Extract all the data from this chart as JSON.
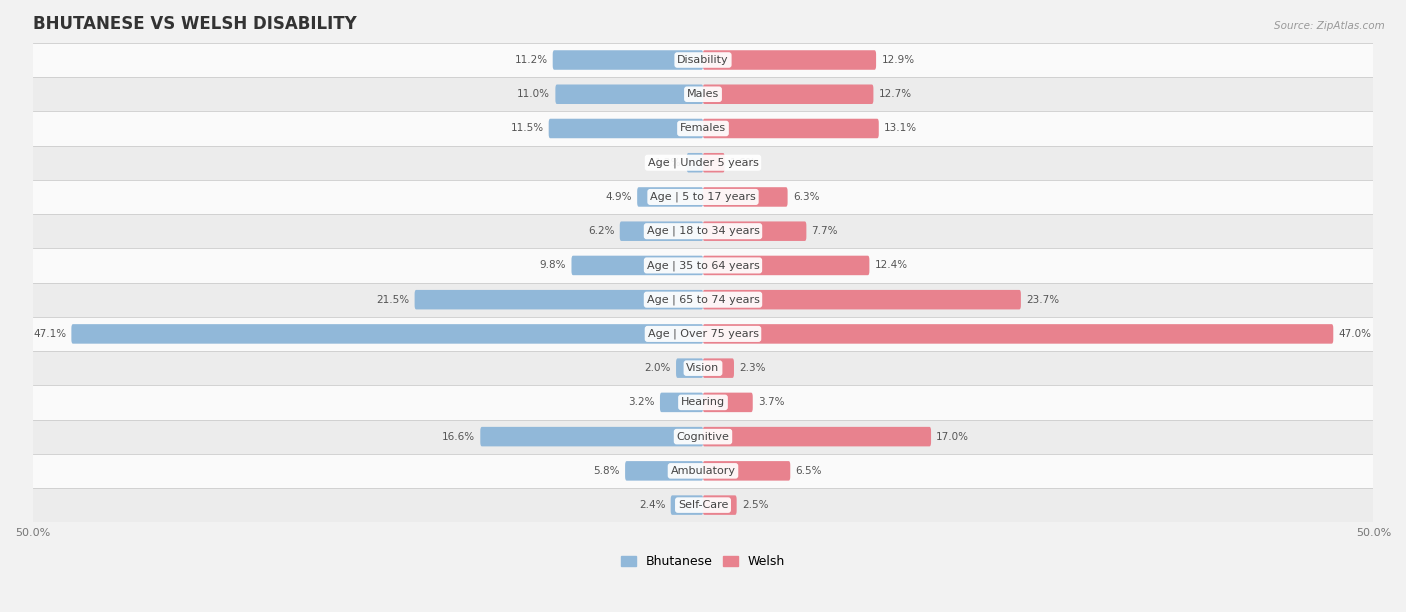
{
  "title": "BHUTANESE VS WELSH DISABILITY",
  "source": "Source: ZipAtlas.com",
  "categories": [
    "Disability",
    "Males",
    "Females",
    "Age | Under 5 years",
    "Age | 5 to 17 years",
    "Age | 18 to 34 years",
    "Age | 35 to 64 years",
    "Age | 65 to 74 years",
    "Age | Over 75 years",
    "Vision",
    "Hearing",
    "Cognitive",
    "Ambulatory",
    "Self-Care"
  ],
  "bhutanese": [
    11.2,
    11.0,
    11.5,
    1.2,
    4.9,
    6.2,
    9.8,
    21.5,
    47.1,
    2.0,
    3.2,
    16.6,
    5.8,
    2.4
  ],
  "welsh": [
    12.9,
    12.7,
    13.1,
    1.6,
    6.3,
    7.7,
    12.4,
    23.7,
    47.0,
    2.3,
    3.7,
    17.0,
    6.5,
    2.5
  ],
  "blue_color": "#91b8d9",
  "pink_color": "#e8828e",
  "bg_color": "#f2f2f2",
  "row_color_odd": "#fafafa",
  "row_color_even": "#ececec",
  "axis_max": 50.0,
  "title_fontsize": 12,
  "label_fontsize": 8,
  "value_fontsize": 7.5,
  "legend_fontsize": 9,
  "bar_height": 0.55
}
